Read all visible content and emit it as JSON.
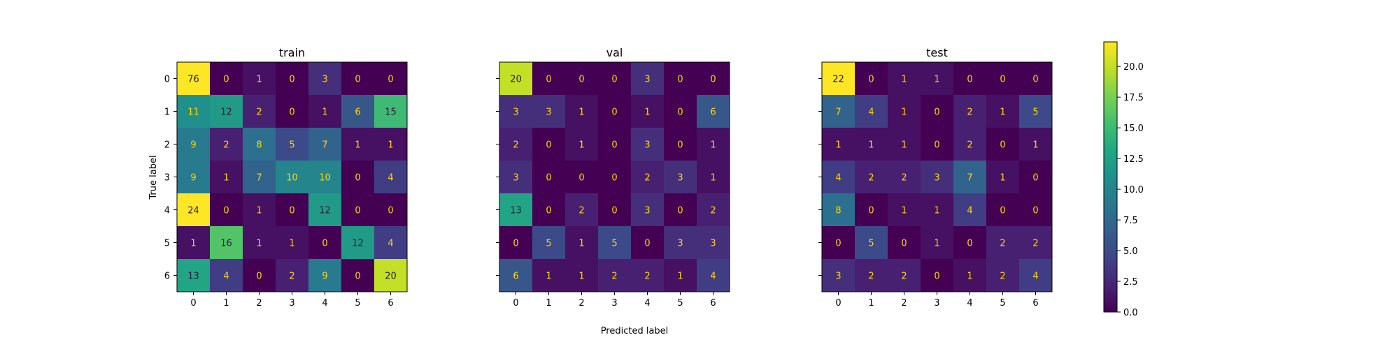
{
  "figure": {
    "xlabel": "Predicted label",
    "ylabel": "True label"
  },
  "chart_data": [
    {
      "type": "heatmap",
      "title": "train",
      "x_ticks": [
        "0",
        "1",
        "2",
        "3",
        "4",
        "5",
        "6"
      ],
      "y_ticks": [
        "0",
        "1",
        "2",
        "3",
        "4",
        "5",
        "6"
      ],
      "values": [
        [
          76,
          0,
          1,
          0,
          3,
          0,
          0
        ],
        [
          11,
          12,
          2,
          0,
          1,
          6,
          15
        ],
        [
          9,
          2,
          8,
          5,
          7,
          1,
          1
        ],
        [
          9,
          1,
          7,
          10,
          10,
          0,
          4
        ],
        [
          24,
          0,
          1,
          0,
          12,
          0,
          0
        ],
        [
          1,
          16,
          1,
          1,
          0,
          12,
          4
        ],
        [
          13,
          4,
          0,
          2,
          9,
          0,
          20
        ]
      ]
    },
    {
      "type": "heatmap",
      "title": "val",
      "x_ticks": [
        "0",
        "1",
        "2",
        "3",
        "4",
        "5",
        "6"
      ],
      "y_ticks": [
        "0",
        "1",
        "2",
        "3",
        "4",
        "5",
        "6"
      ],
      "values": [
        [
          20,
          0,
          0,
          0,
          3,
          0,
          0
        ],
        [
          3,
          3,
          1,
          0,
          1,
          0,
          6
        ],
        [
          2,
          0,
          1,
          0,
          3,
          0,
          1
        ],
        [
          3,
          0,
          0,
          0,
          2,
          3,
          1
        ],
        [
          13,
          0,
          2,
          0,
          3,
          0,
          2
        ],
        [
          0,
          5,
          1,
          5,
          0,
          3,
          3
        ],
        [
          6,
          1,
          1,
          2,
          2,
          1,
          4
        ]
      ]
    },
    {
      "type": "heatmap",
      "title": "test",
      "x_ticks": [
        "0",
        "1",
        "2",
        "3",
        "4",
        "5",
        "6"
      ],
      "y_ticks": [
        "0",
        "1",
        "2",
        "3",
        "4",
        "5",
        "6"
      ],
      "values": [
        [
          22,
          0,
          1,
          1,
          0,
          0,
          0
        ],
        [
          7,
          4,
          1,
          0,
          2,
          1,
          5
        ],
        [
          1,
          1,
          1,
          0,
          2,
          0,
          1
        ],
        [
          4,
          2,
          2,
          3,
          7,
          1,
          0
        ],
        [
          8,
          0,
          1,
          1,
          4,
          0,
          0
        ],
        [
          0,
          5,
          0,
          1,
          0,
          2,
          2
        ],
        [
          3,
          2,
          2,
          0,
          1,
          2,
          4
        ]
      ]
    }
  ],
  "colorbar": {
    "range": [
      0,
      22
    ],
    "ticks": [
      0.0,
      2.5,
      5.0,
      7.5,
      10.0,
      12.5,
      15.0,
      17.5,
      20.0
    ],
    "tick_labels": [
      "0.0",
      "2.5",
      "5.0",
      "7.5",
      "10.0",
      "12.5",
      "15.0",
      "17.5",
      "20.0"
    ],
    "colormap": "viridis"
  },
  "colors": {
    "text_on_dark": "#ffd700",
    "text_on_light": "#2a1a3a"
  }
}
